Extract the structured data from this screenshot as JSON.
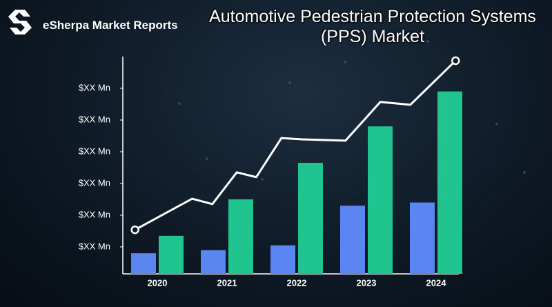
{
  "brand": "eSherpa Market Reports",
  "chart_data": {
    "type": "bar",
    "title": "Automotive Pedestrian Protection Systems (PPS) Market",
    "categories": [
      "2020",
      "2021",
      "2022",
      "2023",
      "2024"
    ],
    "series": [
      {
        "color": "#5b85f0",
        "values": [
          0.8,
          0.9,
          1.05,
          2.3,
          2.4
        ]
      },
      {
        "color": "#1fc48f",
        "values": [
          1.35,
          2.5,
          3.65,
          4.8,
          5.9
        ]
      },
      {
        "type": "line",
        "color": "#ffffff",
        "x": [
          -0.32,
          0.5,
          0.79,
          1.14,
          1.42,
          1.78,
          2.08,
          2.7,
          3.2,
          3.63,
          4.28
        ],
        "values": [
          1.54,
          2.52,
          2.35,
          3.35,
          3.2,
          4.43,
          4.39,
          4.35,
          5.57,
          5.48,
          6.87
        ]
      }
    ],
    "ylim": [
      0.15,
      7
    ],
    "yticks": [
      {
        "value": 1,
        "label": "$XX Mn"
      },
      {
        "value": 2,
        "label": "$XX Mn"
      },
      {
        "value": 3,
        "label": "$XX Mn"
      },
      {
        "value": 4,
        "label": "$XX Mn"
      },
      {
        "value": 5,
        "label": "$XX Mn"
      },
      {
        "value": 6,
        "label": "$XX Mn"
      }
    ],
    "grid": false
  }
}
